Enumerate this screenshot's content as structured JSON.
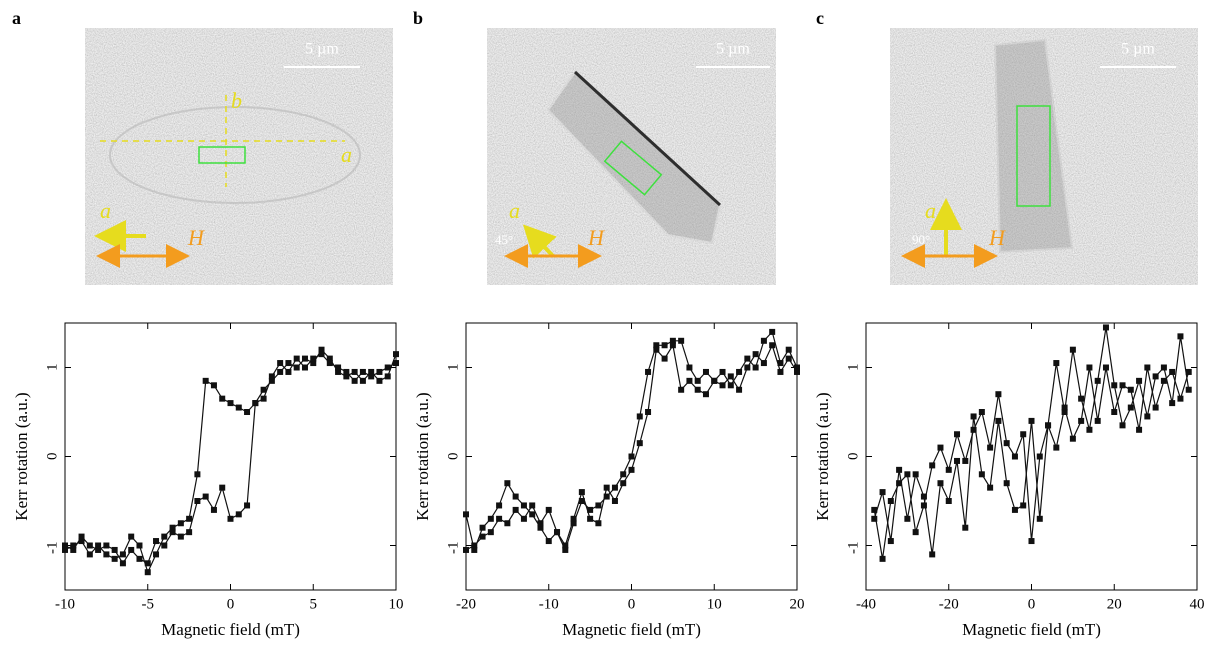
{
  "panels": [
    {
      "letter": "a",
      "scale": "5 µm",
      "axis_long": "a",
      "axis_short": "b",
      "easy_axis": "a",
      "field": "H"
    },
    {
      "letter": "b",
      "scale": "5 µm",
      "easy_axis": "a",
      "angle": "45°",
      "field": "H"
    },
    {
      "letter": "c",
      "scale": "5 µm",
      "easy_axis": "a",
      "angle": "90°",
      "field": "H"
    }
  ],
  "chart_data": [
    {
      "type": "line",
      "xlabel": "Magnetic field (mT)",
      "ylabel": "Kerr rotation (a.u.)",
      "xlim": [
        -10,
        10
      ],
      "xticks": [
        -10,
        -5,
        0,
        5,
        10
      ],
      "ylim": [
        -1.5,
        1.5
      ],
      "yticks": [
        -1,
        0,
        1
      ],
      "x": [
        -10,
        -9.5,
        -9,
        -8.5,
        -8,
        -7.5,
        -7,
        -6.5,
        -6,
        -5.5,
        -5,
        -4.5,
        -4,
        -3.5,
        -3,
        -2.5,
        -2,
        -1.5,
        -1,
        -0.5,
        0,
        0.5,
        1,
        1.5,
        2,
        2.5,
        3,
        3.5,
        4,
        4.5,
        5,
        5.5,
        6,
        6.5,
        7,
        7.5,
        8,
        8.5,
        9,
        9.5,
        10
      ],
      "series": [
        {
          "color": "#111111",
          "values": [
            -1.05,
            -1.0,
            -0.95,
            -1.1,
            -1.0,
            -1.1,
            -1.15,
            -1.1,
            -0.9,
            -1.0,
            -1.3,
            -1.1,
            -0.9,
            -0.8,
            -0.75,
            -0.7,
            -0.2,
            0.85,
            0.8,
            0.65,
            0.6,
            0.55,
            0.5,
            0.6,
            0.75,
            0.85,
            0.95,
            1.05,
            1.0,
            1.1,
            1.05,
            1.2,
            1.1,
            0.95,
            0.9,
            0.95,
            0.85,
            0.95,
            0.85,
            0.9,
            1.15
          ]
        },
        {
          "color": "#111111",
          "values": [
            -1.0,
            -1.05,
            -0.9,
            -1.0,
            -1.05,
            -1.0,
            -1.05,
            -1.2,
            -1.05,
            -1.15,
            -1.2,
            -0.95,
            -1.0,
            -0.85,
            -0.9,
            -0.85,
            -0.5,
            -0.45,
            -0.6,
            -0.35,
            -0.7,
            -0.65,
            -0.55,
            0.6,
            0.65,
            0.9,
            1.05,
            0.95,
            1.1,
            1.0,
            1.1,
            1.15,
            1.05,
            1.0,
            0.95,
            0.85,
            0.95,
            0.9,
            0.95,
            1.0,
            1.05
          ]
        }
      ]
    },
    {
      "type": "line",
      "xlabel": "Magnetic field (mT)",
      "ylabel": "Kerr rotation (a.u.)",
      "xlim": [
        -20,
        20
      ],
      "xticks": [
        -20,
        -10,
        0,
        10,
        20
      ],
      "ylim": [
        -1.5,
        1.5
      ],
      "yticks": [
        -1,
        0,
        1
      ],
      "x": [
        -20,
        -19,
        -18,
        -17,
        -16,
        -15,
        -14,
        -13,
        -12,
        -11,
        -10,
        -9,
        -8,
        -7,
        -6,
        -5,
        -4,
        -3,
        -2,
        -1,
        0,
        1,
        2,
        3,
        4,
        5,
        6,
        7,
        8,
        9,
        10,
        11,
        12,
        13,
        14,
        15,
        16,
        17,
        18,
        19,
        20
      ],
      "series": [
        {
          "color": "#111111",
          "values": [
            -0.65,
            -1.05,
            -0.8,
            -0.7,
            -0.55,
            -0.3,
            -0.45,
            -0.55,
            -0.65,
            -0.8,
            -0.95,
            -0.85,
            -1.05,
            -0.75,
            -0.5,
            -0.6,
            -0.55,
            -0.45,
            -0.35,
            -0.2,
            0.0,
            0.45,
            0.95,
            1.25,
            1.25,
            1.3,
            1.3,
            1.0,
            0.85,
            0.95,
            0.85,
            0.95,
            0.8,
            0.95,
            1.1,
            1.0,
            1.3,
            1.4,
            1.05,
            1.2,
            1.0
          ]
        },
        {
          "color": "#111111",
          "values": [
            -1.05,
            -1.0,
            -0.9,
            -0.85,
            -0.7,
            -0.75,
            -0.6,
            -0.7,
            -0.55,
            -0.75,
            -0.6,
            -0.85,
            -1.0,
            -0.7,
            -0.4,
            -0.7,
            -0.75,
            -0.35,
            -0.5,
            -0.3,
            -0.15,
            0.15,
            0.5,
            1.2,
            1.1,
            1.25,
            0.75,
            0.85,
            0.75,
            0.7,
            0.85,
            0.8,
            0.9,
            0.75,
            1.0,
            1.15,
            1.05,
            1.25,
            0.95,
            1.1,
            0.95
          ]
        }
      ]
    },
    {
      "type": "line",
      "xlabel": "Magnetic field (mT)",
      "ylabel": "Kerr rotation (a.u.)",
      "xlim": [
        -40,
        40
      ],
      "xticks": [
        -40,
        -20,
        0,
        20,
        40
      ],
      "ylim": [
        -1.5,
        1.5
      ],
      "yticks": [
        -1,
        0,
        1
      ],
      "x": [
        -38,
        -36,
        -34,
        -32,
        -30,
        -28,
        -26,
        -24,
        -22,
        -20,
        -18,
        -16,
        -14,
        -12,
        -10,
        -8,
        -6,
        -4,
        -2,
        0,
        2,
        4,
        6,
        8,
        10,
        12,
        14,
        16,
        18,
        20,
        22,
        24,
        26,
        28,
        30,
        32,
        34,
        36,
        38
      ],
      "series": [
        {
          "color": "#111111",
          "values": [
            -0.6,
            -1.15,
            -0.5,
            -0.3,
            -0.2,
            -0.85,
            -0.55,
            -0.1,
            0.1,
            -0.15,
            0.25,
            -0.05,
            0.3,
            0.5,
            0.1,
            0.7,
            0.15,
            0.0,
            0.25,
            -0.95,
            0.0,
            0.35,
            1.05,
            0.5,
            1.2,
            0.65,
            0.3,
            0.85,
            1.45,
            0.8,
            0.35,
            0.55,
            0.85,
            0.45,
            0.9,
            1.0,
            0.6,
            1.35,
            0.75
          ]
        },
        {
          "color": "#111111",
          "values": [
            -0.7,
            -0.4,
            -0.95,
            -0.15,
            -0.7,
            -0.2,
            -0.45,
            -1.1,
            -0.3,
            -0.5,
            -0.05,
            -0.8,
            0.45,
            -0.2,
            -0.35,
            0.4,
            -0.3,
            -0.6,
            -0.55,
            0.4,
            -0.7,
            0.35,
            0.1,
            0.55,
            0.2,
            0.4,
            1.0,
            0.4,
            1.0,
            0.5,
            0.8,
            0.75,
            0.3,
            1.0,
            0.55,
            0.85,
            0.95,
            0.65,
            0.95
          ]
        }
      ]
    }
  ]
}
